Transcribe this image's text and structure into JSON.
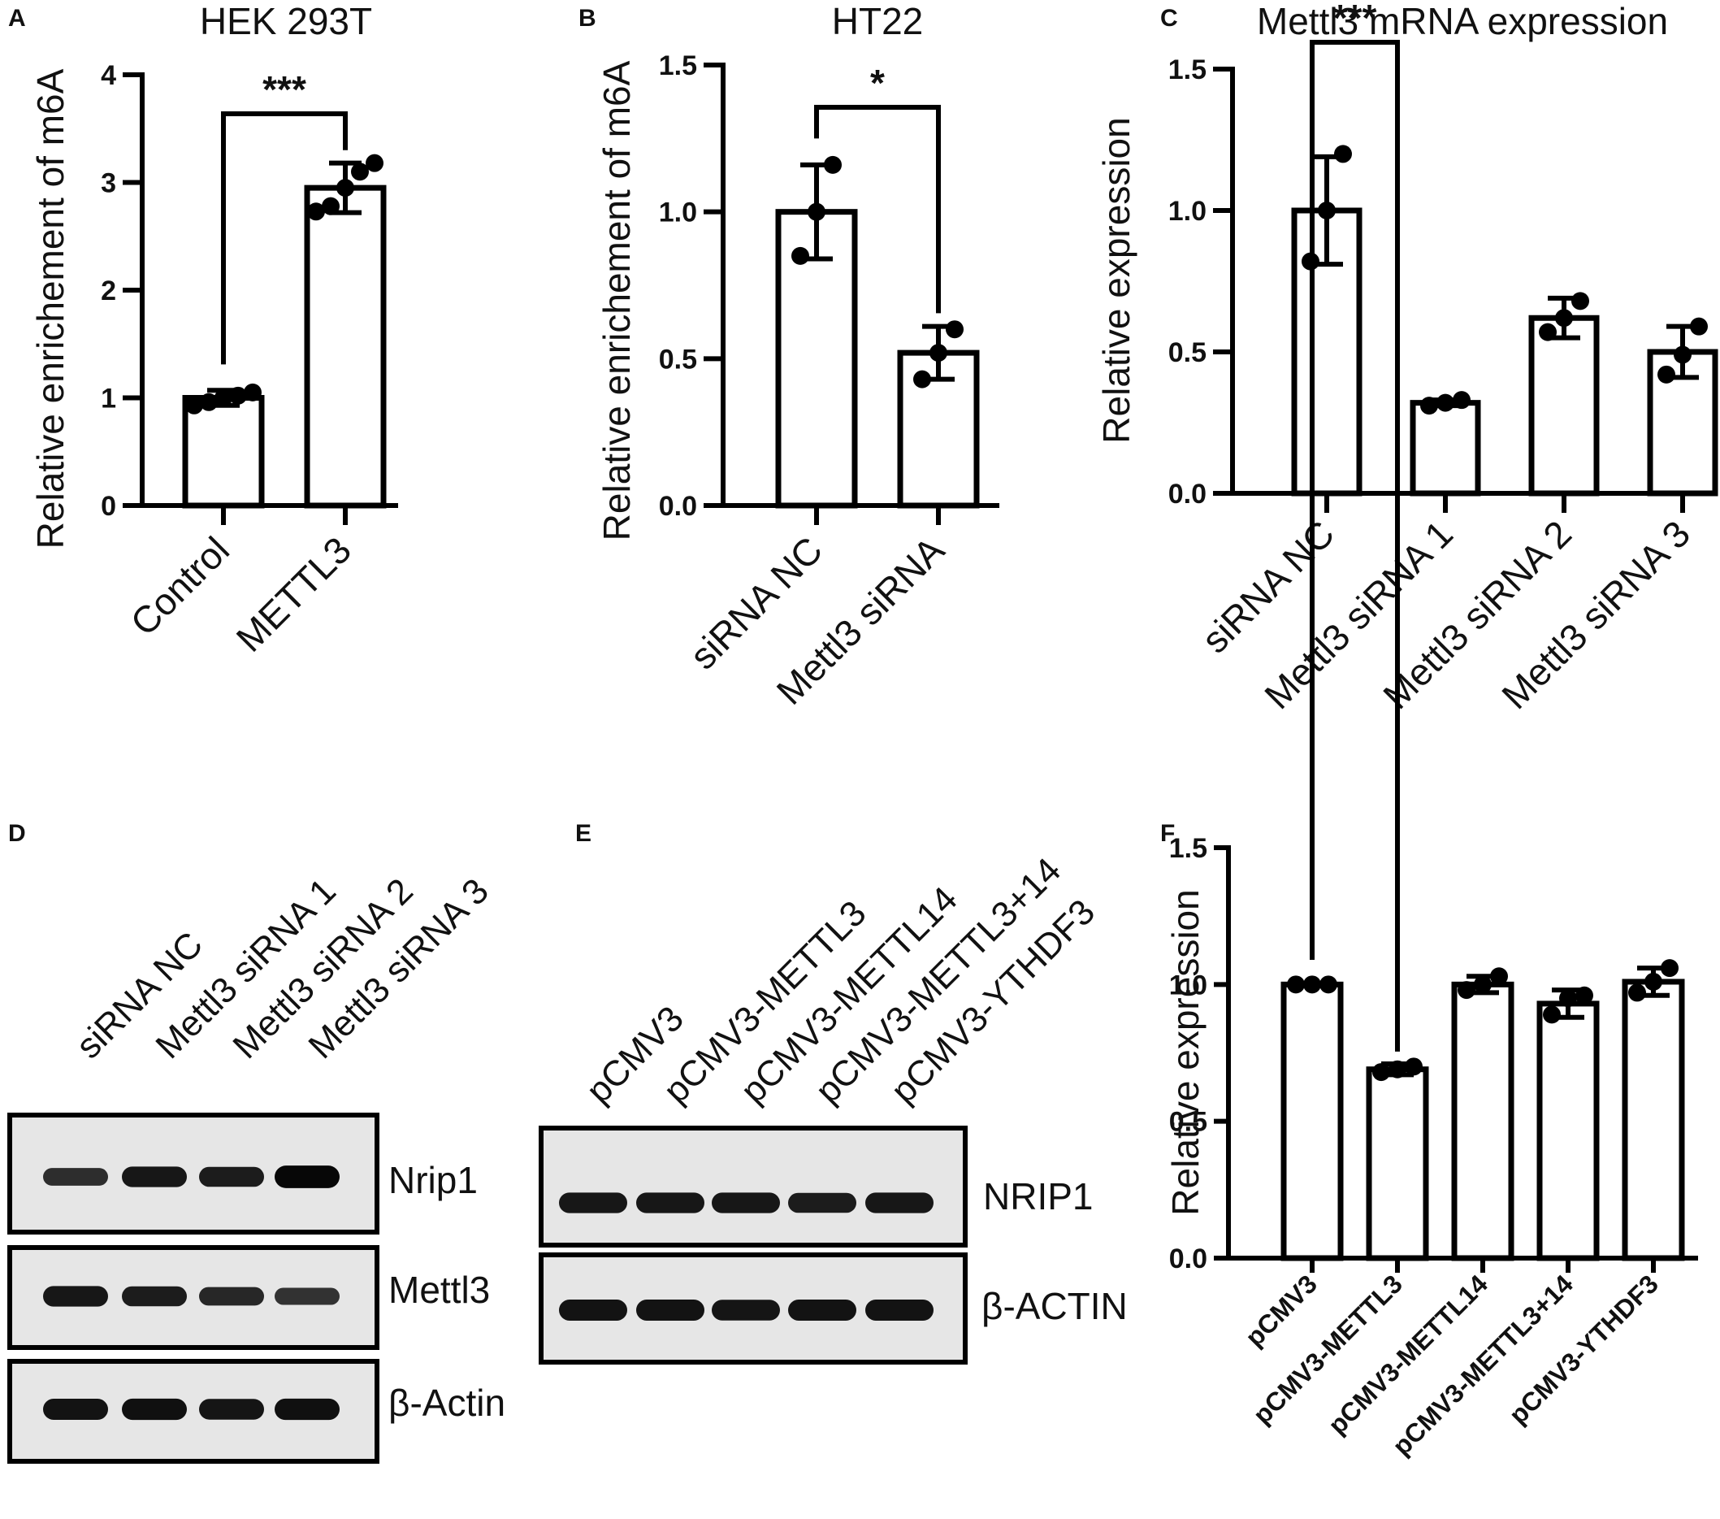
{
  "chart_data": [
    {
      "panel": "A",
      "type": "bar",
      "title": "HEK 293T",
      "ylabel": "Relative enrichement of m6A",
      "xlabel": "",
      "ylim": [
        0,
        4
      ],
      "yticks": [
        "0",
        "1",
        "2",
        "3",
        "4"
      ],
      "categories": [
        "Control",
        "METTL3"
      ],
      "values": [
        1.0,
        2.95
      ],
      "errors": [
        0.07,
        0.23
      ],
      "points": [
        [
          0.93,
          0.96,
          1.0,
          1.02,
          1.05
        ],
        [
          2.73,
          2.78,
          2.95,
          3.1,
          3.18
        ]
      ],
      "significance": [
        {
          "from": 0,
          "to": 1,
          "label": "***"
        }
      ]
    },
    {
      "panel": "B",
      "type": "bar",
      "title": "HT22",
      "ylabel": "Relative enrichement of m6A",
      "xlabel": "",
      "ylim": [
        0,
        1.5
      ],
      "yticks": [
        "0.0",
        "0.5",
        "1.0",
        "1.5"
      ],
      "categories": [
        "siRNA NC",
        "Mettl3 siRNA"
      ],
      "values": [
        1.0,
        0.52
      ],
      "errors": [
        0.16,
        0.09
      ],
      "points": [
        [
          0.85,
          1.0,
          1.16
        ],
        [
          0.43,
          0.52,
          0.6
        ]
      ],
      "significance": [
        {
          "from": 0,
          "to": 1,
          "label": "*"
        }
      ]
    },
    {
      "panel": "C",
      "type": "bar",
      "title": "Mettl3 mRNA expression",
      "ylabel": "Relative expression",
      "xlabel": "",
      "ylim": [
        0,
        1.5
      ],
      "yticks": [
        "0.0",
        "0.5",
        "1.0",
        "1.5"
      ],
      "categories": [
        "siRNA NC",
        "Mettl3 siRNA 1",
        "Mettl3 siRNA 2",
        "Mettl3 siRNA 3"
      ],
      "values": [
        1.0,
        0.32,
        0.62,
        0.5
      ],
      "errors": [
        0.19,
        0.01,
        0.07,
        0.09
      ],
      "points": [
        [
          0.82,
          1.0,
          1.2
        ],
        [
          0.31,
          0.32,
          0.33
        ],
        [
          0.57,
          0.62,
          0.68
        ],
        [
          0.42,
          0.49,
          0.59
        ]
      ],
      "significance": []
    },
    {
      "panel": "F",
      "type": "bar",
      "title": "",
      "ylabel": "Relative expression",
      "xlabel": "",
      "ylim": [
        0,
        1.5
      ],
      "yticks": [
        "0.0",
        "0.5",
        "1.0",
        "1.5"
      ],
      "categories": [
        "pCMV3",
        "pCMV3-METTL3",
        "pCMV3-METTL14",
        "pCMV3-METTL3+14",
        "pCMV3-YTHDF3"
      ],
      "values": [
        1.0,
        0.69,
        1.0,
        0.93,
        1.01
      ],
      "errors": [
        0.0,
        0.02,
        0.03,
        0.05,
        0.05
      ],
      "points": [
        [
          1.0,
          1.0,
          1.0
        ],
        [
          0.68,
          0.69,
          0.7
        ],
        [
          0.98,
          1.0,
          1.03
        ],
        [
          0.89,
          0.95,
          0.96
        ],
        [
          0.97,
          1.01,
          1.06
        ]
      ],
      "significance": [
        {
          "from": 0,
          "to": 1,
          "label": "***"
        }
      ]
    }
  ],
  "panel_labels": [
    "A",
    "B",
    "C",
    "D",
    "E",
    "F"
  ],
  "blot_D": {
    "lanes": [
      "siRNA NC",
      "Mettl3 siRNA 1",
      "Mettl3 siRNA 2",
      "Mettl3 siRNA 3"
    ],
    "proteins": [
      "Nrip1",
      "Mettl3",
      "β-Actin"
    ],
    "band_intensity": [
      [
        0.55,
        0.8,
        0.75,
        0.98
      ],
      [
        0.8,
        0.75,
        0.62,
        0.5
      ],
      [
        0.85,
        0.88,
        0.82,
        0.88
      ]
    ]
  },
  "blot_E": {
    "lanes": [
      "pCMV3",
      "pCMV3-METTL3",
      "pCMV3-METTL14",
      "pCMV3-METTL3+14",
      "pCMV3-YTHDF3"
    ],
    "proteins": [
      "NRIP1",
      "β-ACTIN"
    ],
    "band_intensity": [
      [
        0.8,
        0.8,
        0.8,
        0.75,
        0.8
      ],
      [
        0.85,
        0.85,
        0.82,
        0.85,
        0.85
      ]
    ]
  }
}
